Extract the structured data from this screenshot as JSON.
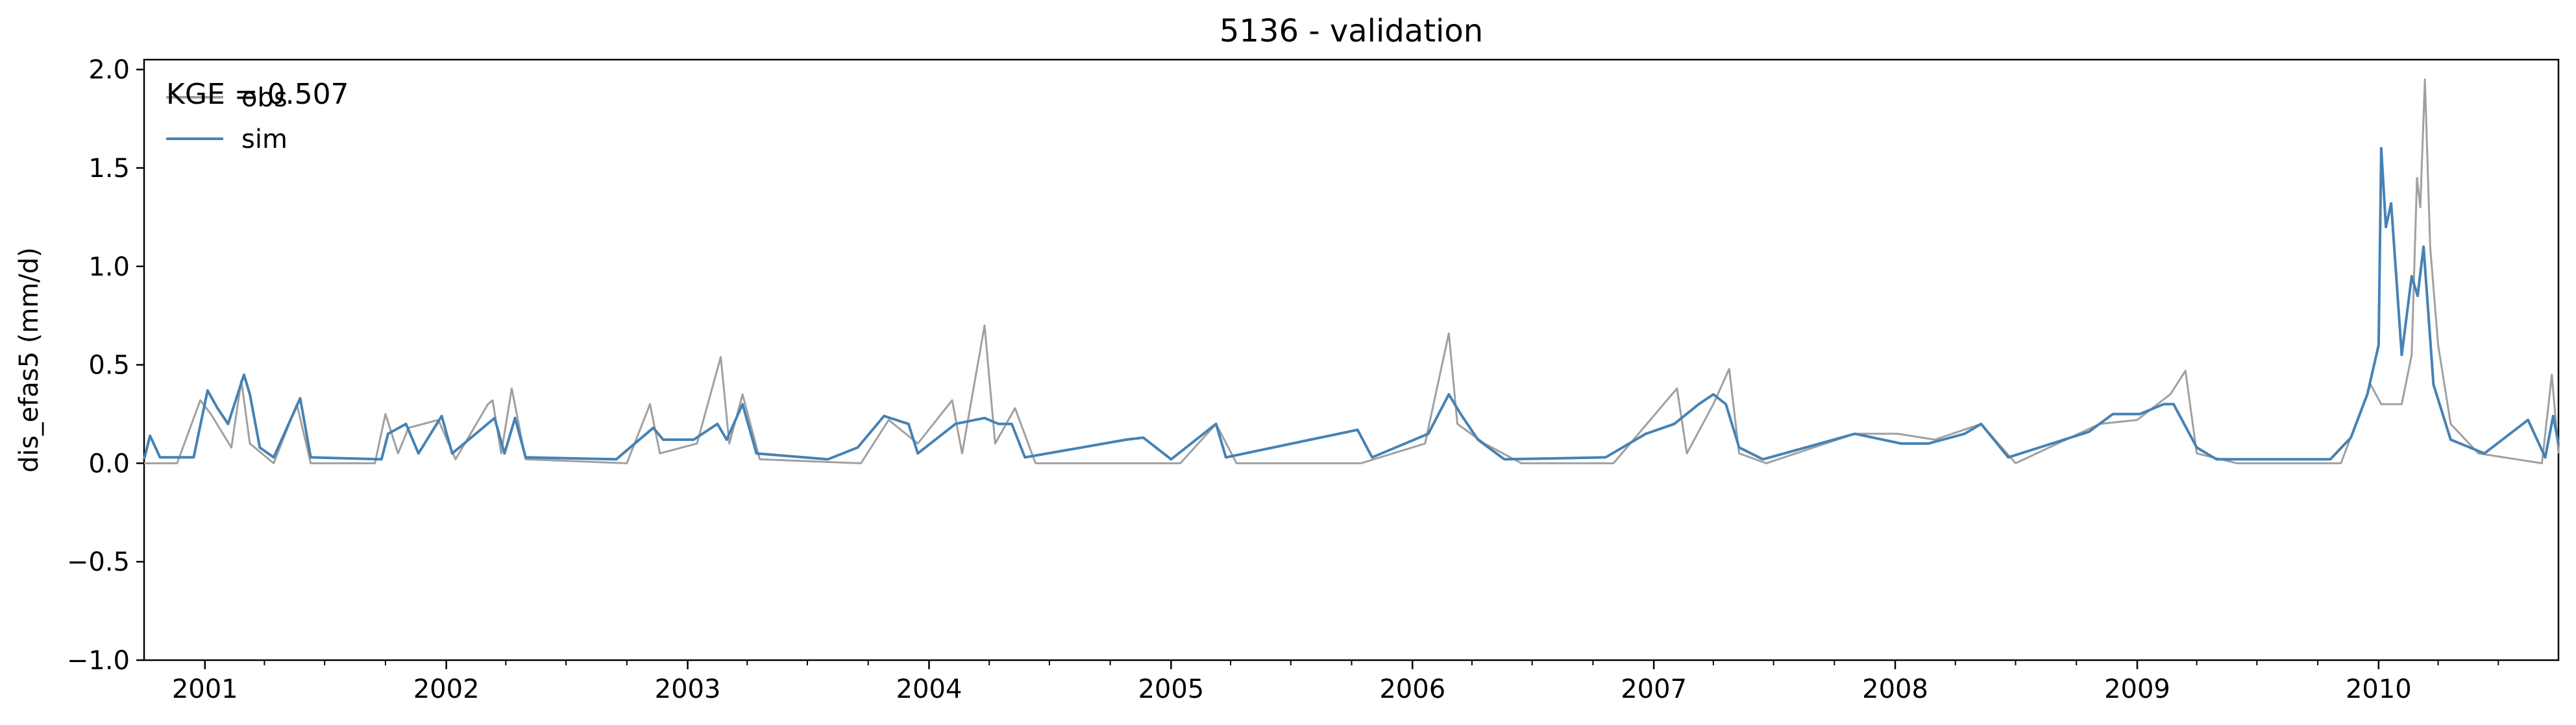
{
  "chart_data": {
    "type": "line",
    "title": "5136 - validation",
    "xlabel": "",
    "ylabel": "dis_efas5 (mm/d)",
    "x_range": [
      "2000-10-01",
      "2010-09-30"
    ],
    "ylim": [
      -1.0,
      2.05
    ],
    "y_ticks": [
      -1.0,
      -0.5,
      0.0,
      0.5,
      1.0,
      1.5,
      2.0
    ],
    "y_tick_labels": [
      "−1.0",
      "−0.5",
      "0.0",
      "0.5",
      "1.0",
      "1.5",
      "2.0"
    ],
    "x_ticks": [
      "2001-01-01",
      "2002-01-01",
      "2003-01-01",
      "2004-01-01",
      "2005-01-01",
      "2006-01-01",
      "2007-01-01",
      "2008-01-01",
      "2009-01-01",
      "2010-01-01"
    ],
    "x_tick_labels": [
      "2001",
      "2002",
      "2003",
      "2004",
      "2005",
      "2006",
      "2007",
      "2008",
      "2009",
      "2010"
    ],
    "grid": false,
    "legend_placement": "top-left",
    "annotation": "KGE = 0.507",
    "series": [
      {
        "name": "obs",
        "color": "#a0a0a0",
        "points": [
          [
            "2000-10-01",
            0.0
          ],
          [
            "2000-11-20",
            0.0
          ],
          [
            "2000-12-25",
            0.32
          ],
          [
            "2001-01-10",
            0.25
          ],
          [
            "2001-02-10",
            0.08
          ],
          [
            "2001-02-25",
            0.42
          ],
          [
            "2001-03-10",
            0.1
          ],
          [
            "2001-04-15",
            0.0
          ],
          [
            "2001-05-20",
            0.3
          ],
          [
            "2001-06-10",
            0.0
          ],
          [
            "2001-09-15",
            0.0
          ],
          [
            "2001-10-01",
            0.25
          ],
          [
            "2001-10-20",
            0.05
          ],
          [
            "2001-11-05",
            0.18
          ],
          [
            "2001-12-20",
            0.22
          ],
          [
            "2002-01-15",
            0.02
          ],
          [
            "2002-03-05",
            0.3
          ],
          [
            "2002-03-12",
            0.32
          ],
          [
            "2002-03-25",
            0.05
          ],
          [
            "2002-04-10",
            0.38
          ],
          [
            "2002-05-01",
            0.02
          ],
          [
            "2002-10-01",
            0.0
          ],
          [
            "2002-11-05",
            0.3
          ],
          [
            "2002-11-20",
            0.05
          ],
          [
            "2003-01-15",
            0.1
          ],
          [
            "2003-02-20",
            0.54
          ],
          [
            "2003-03-05",
            0.1
          ],
          [
            "2003-03-25",
            0.35
          ],
          [
            "2003-04-20",
            0.02
          ],
          [
            "2003-09-20",
            0.0
          ],
          [
            "2003-11-01",
            0.22
          ],
          [
            "2003-12-15",
            0.1
          ],
          [
            "2004-02-05",
            0.32
          ],
          [
            "2004-02-20",
            0.05
          ],
          [
            "2004-03-25",
            0.7
          ],
          [
            "2004-04-10",
            0.1
          ],
          [
            "2004-05-10",
            0.28
          ],
          [
            "2004-06-10",
            0.0
          ],
          [
            "2004-11-01",
            0.0
          ],
          [
            "2005-01-15",
            0.0
          ],
          [
            "2005-03-10",
            0.2
          ],
          [
            "2005-04-10",
            0.0
          ],
          [
            "2005-10-15",
            0.0
          ],
          [
            "2006-01-20",
            0.1
          ],
          [
            "2006-02-25",
            0.66
          ],
          [
            "2006-03-10",
            0.2
          ],
          [
            "2006-04-20",
            0.1
          ],
          [
            "2006-06-15",
            0.0
          ],
          [
            "2006-11-01",
            0.0
          ],
          [
            "2007-02-05",
            0.38
          ],
          [
            "2007-02-20",
            0.05
          ],
          [
            "2007-04-01",
            0.3
          ],
          [
            "2007-04-25",
            0.48
          ],
          [
            "2007-05-10",
            0.05
          ],
          [
            "2007-06-20",
            0.0
          ],
          [
            "2007-11-01",
            0.15
          ],
          [
            "2008-01-05",
            0.15
          ],
          [
            "2008-03-01",
            0.12
          ],
          [
            "2008-05-10",
            0.2
          ],
          [
            "2008-07-01",
            0.0
          ],
          [
            "2008-11-05",
            0.2
          ],
          [
            "2009-01-01",
            0.22
          ],
          [
            "2009-02-20",
            0.35
          ],
          [
            "2009-03-15",
            0.47
          ],
          [
            "2009-04-01",
            0.05
          ],
          [
            "2009-06-01",
            0.0
          ],
          [
            "2009-11-05",
            0.0
          ],
          [
            "2009-12-20",
            0.4
          ],
          [
            "2010-01-05",
            0.3
          ],
          [
            "2010-02-05",
            0.3
          ],
          [
            "2010-02-20",
            0.55
          ],
          [
            "2010-02-28",
            1.45
          ],
          [
            "2010-03-05",
            1.3
          ],
          [
            "2010-03-12",
            1.95
          ],
          [
            "2010-03-20",
            1.1
          ],
          [
            "2010-04-01",
            0.6
          ],
          [
            "2010-04-20",
            0.2
          ],
          [
            "2010-06-01",
            0.05
          ],
          [
            "2010-09-05",
            0.0
          ],
          [
            "2010-09-20",
            0.45
          ],
          [
            "2010-09-30",
            0.05
          ]
        ]
      },
      {
        "name": "sim",
        "color": "#4682b4",
        "points": [
          [
            "2000-10-01",
            0.02
          ],
          [
            "2000-10-10",
            0.14
          ],
          [
            "2000-10-25",
            0.03
          ],
          [
            "2000-12-15",
            0.03
          ],
          [
            "2001-01-05",
            0.37
          ],
          [
            "2001-01-20",
            0.28
          ],
          [
            "2001-02-05",
            0.2
          ],
          [
            "2001-03-01",
            0.45
          ],
          [
            "2001-03-10",
            0.35
          ],
          [
            "2001-03-25",
            0.08
          ],
          [
            "2001-04-15",
            0.03
          ],
          [
            "2001-05-25",
            0.33
          ],
          [
            "2001-06-10",
            0.03
          ],
          [
            "2001-09-25",
            0.02
          ],
          [
            "2001-10-05",
            0.15
          ],
          [
            "2001-11-01",
            0.2
          ],
          [
            "2001-11-20",
            0.05
          ],
          [
            "2001-12-25",
            0.24
          ],
          [
            "2002-01-10",
            0.05
          ],
          [
            "2002-03-15",
            0.23
          ],
          [
            "2002-03-30",
            0.05
          ],
          [
            "2002-04-15",
            0.23
          ],
          [
            "2002-05-01",
            0.03
          ],
          [
            "2002-09-15",
            0.02
          ],
          [
            "2002-11-10",
            0.18
          ],
          [
            "2002-11-25",
            0.12
          ],
          [
            "2003-01-10",
            0.12
          ],
          [
            "2003-02-15",
            0.2
          ],
          [
            "2003-03-01",
            0.12
          ],
          [
            "2003-03-25",
            0.3
          ],
          [
            "2003-04-15",
            0.05
          ],
          [
            "2003-08-01",
            0.02
          ],
          [
            "2003-09-15",
            0.08
          ],
          [
            "2003-10-25",
            0.24
          ],
          [
            "2003-12-01",
            0.2
          ],
          [
            "2003-12-15",
            0.05
          ],
          [
            "2004-02-10",
            0.2
          ],
          [
            "2004-03-25",
            0.23
          ],
          [
            "2004-04-15",
            0.2
          ],
          [
            "2004-05-05",
            0.2
          ],
          [
            "2004-05-25",
            0.03
          ],
          [
            "2004-10-25",
            0.12
          ],
          [
            "2004-11-20",
            0.13
          ],
          [
            "2005-01-01",
            0.02
          ],
          [
            "2005-03-10",
            0.2
          ],
          [
            "2005-03-25",
            0.03
          ],
          [
            "2005-10-10",
            0.17
          ],
          [
            "2005-11-01",
            0.03
          ],
          [
            "2006-01-25",
            0.15
          ],
          [
            "2006-02-25",
            0.35
          ],
          [
            "2006-03-15",
            0.25
          ],
          [
            "2006-04-10",
            0.12
          ],
          [
            "2006-05-20",
            0.02
          ],
          [
            "2006-10-20",
            0.03
          ],
          [
            "2006-12-20",
            0.15
          ],
          [
            "2007-02-01",
            0.2
          ],
          [
            "2007-03-10",
            0.3
          ],
          [
            "2007-04-01",
            0.35
          ],
          [
            "2007-04-20",
            0.3
          ],
          [
            "2007-05-10",
            0.08
          ],
          [
            "2007-06-15",
            0.02
          ],
          [
            "2007-11-01",
            0.15
          ],
          [
            "2008-01-10",
            0.1
          ],
          [
            "2008-02-20",
            0.1
          ],
          [
            "2008-04-15",
            0.15
          ],
          [
            "2008-05-10",
            0.2
          ],
          [
            "2008-06-20",
            0.03
          ],
          [
            "2008-10-20",
            0.16
          ],
          [
            "2008-11-25",
            0.25
          ],
          [
            "2009-01-05",
            0.25
          ],
          [
            "2009-02-10",
            0.3
          ],
          [
            "2009-02-25",
            0.3
          ],
          [
            "2009-04-01",
            0.08
          ],
          [
            "2009-05-01",
            0.02
          ],
          [
            "2009-10-20",
            0.02
          ],
          [
            "2009-11-20",
            0.13
          ],
          [
            "2009-12-15",
            0.35
          ],
          [
            "2010-01-01",
            0.6
          ],
          [
            "2010-01-05",
            1.6
          ],
          [
            "2010-01-12",
            1.2
          ],
          [
            "2010-01-20",
            1.32
          ],
          [
            "2010-02-05",
            0.55
          ],
          [
            "2010-02-20",
            0.95
          ],
          [
            "2010-03-01",
            0.85
          ],
          [
            "2010-03-10",
            1.1
          ],
          [
            "2010-03-25",
            0.4
          ],
          [
            "2010-04-20",
            0.12
          ],
          [
            "2010-06-10",
            0.05
          ],
          [
            "2010-08-15",
            0.22
          ],
          [
            "2010-09-10",
            0.03
          ],
          [
            "2010-09-22",
            0.24
          ],
          [
            "2010-09-30",
            0.1
          ]
        ]
      }
    ]
  }
}
